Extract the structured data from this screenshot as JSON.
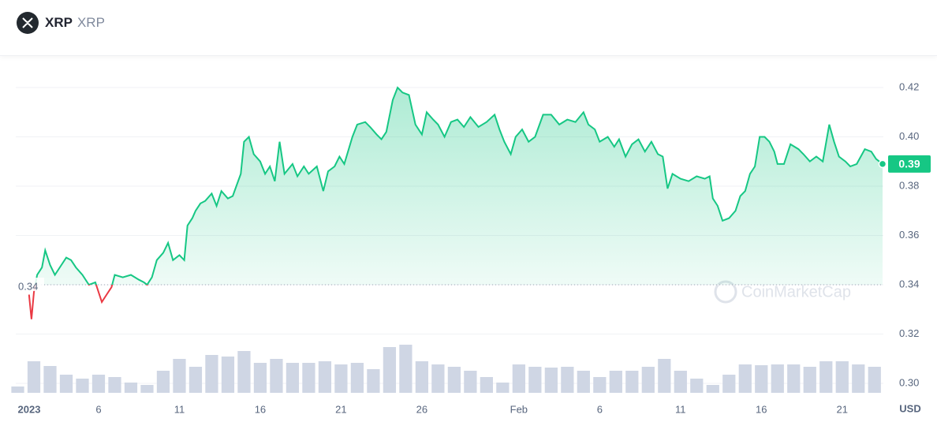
{
  "header": {
    "symbol": "XRP",
    "name": "XRP"
  },
  "chart_data": {
    "type": "line",
    "series": [
      {
        "name": "XRP",
        "color": "#16c784",
        "down_color": "#ea3943",
        "x": [
          0.7,
          0.85,
          1.0,
          1.2,
          1.5,
          1.7,
          2.0,
          2.3,
          2.7,
          3.0,
          3.3,
          3.6,
          4.0,
          4.4,
          4.8,
          5.0,
          5.2,
          5.5,
          5.8,
          6.0,
          6.5,
          7.0,
          7.5,
          7.8,
          8.0,
          8.3,
          8.6,
          9.0,
          9.3,
          9.6,
          10.0,
          10.3,
          10.5,
          10.8,
          11.0,
          11.3,
          11.6,
          12.0,
          12.3,
          12.6,
          13.0,
          13.3,
          13.8,
          14.0,
          14.3,
          14.6,
          15.0,
          15.3,
          15.6,
          15.9,
          16.2,
          16.5,
          17.0,
          17.3,
          17.7,
          18.0,
          18.5,
          18.9,
          19.2,
          19.6,
          19.9,
          20.2,
          20.7,
          21.0,
          21.5,
          21.8,
          22.2,
          22.5,
          22.8,
          23.2,
          23.5,
          23.8,
          24.2,
          24.6,
          25.0,
          25.3,
          25.7,
          26.0,
          26.4,
          26.8,
          27.2,
          27.6,
          28.0,
          28.5,
          29.0,
          29.5,
          29.8,
          30.1,
          30.5,
          30.8,
          31.2,
          31.6,
          32.0,
          32.5,
          33.0,
          33.5,
          34.0,
          34.5,
          35.0,
          35.3,
          35.7,
          36.0,
          36.5,
          36.9,
          37.2,
          37.6,
          38.0,
          38.4,
          38.8,
          39.2,
          39.6,
          39.9,
          40.2,
          40.5,
          41.0,
          41.5,
          42.0,
          42.5,
          42.8,
          43.0,
          43.3,
          43.6,
          44.0,
          44.4,
          44.7,
          45.0,
          45.3,
          45.6,
          45.9,
          46.2,
          46.5,
          46.8,
          47.0,
          47.4,
          47.8,
          48.3,
          48.6,
          49.0,
          49.4,
          49.8,
          50.2,
          50.5,
          50.8,
          51.2,
          51.5,
          51.9,
          52.4,
          52.8,
          53.1,
          53.5
        ],
        "values": [
          0.336,
          0.326,
          0.337,
          0.344,
          0.347,
          0.354,
          0.348,
          0.344,
          0.348,
          0.351,
          0.35,
          0.347,
          0.344,
          0.34,
          0.341,
          0.337,
          0.333,
          0.336,
          0.339,
          0.344,
          0.343,
          0.344,
          0.342,
          0.341,
          0.34,
          0.343,
          0.35,
          0.353,
          0.357,
          0.35,
          0.352,
          0.35,
          0.364,
          0.367,
          0.37,
          0.373,
          0.374,
          0.377,
          0.372,
          0.378,
          0.375,
          0.376,
          0.385,
          0.398,
          0.4,
          0.393,
          0.39,
          0.385,
          0.388,
          0.382,
          0.398,
          0.385,
          0.389,
          0.384,
          0.388,
          0.385,
          0.388,
          0.378,
          0.386,
          0.388,
          0.392,
          0.389,
          0.4,
          0.405,
          0.406,
          0.404,
          0.401,
          0.399,
          0.402,
          0.415,
          0.42,
          0.418,
          0.417,
          0.405,
          0.401,
          0.41,
          0.407,
          0.405,
          0.4,
          0.406,
          0.407,
          0.404,
          0.408,
          0.404,
          0.406,
          0.409,
          0.403,
          0.398,
          0.393,
          0.4,
          0.403,
          0.398,
          0.4,
          0.409,
          0.409,
          0.405,
          0.407,
          0.406,
          0.41,
          0.405,
          0.403,
          0.398,
          0.4,
          0.396,
          0.399,
          0.392,
          0.397,
          0.399,
          0.394,
          0.398,
          0.393,
          0.392,
          0.379,
          0.385,
          0.383,
          0.382,
          0.384,
          0.383,
          0.384,
          0.375,
          0.372,
          0.366,
          0.367,
          0.37,
          0.376,
          0.378,
          0.385,
          0.388,
          0.4,
          0.4,
          0.398,
          0.394,
          0.389,
          0.389,
          0.397,
          0.395,
          0.393,
          0.39,
          0.392,
          0.39,
          0.405,
          0.398,
          0.392,
          0.39,
          0.388,
          0.389,
          0.395,
          0.394,
          0.391,
          0.389
        ]
      }
    ],
    "baseline": 0.34,
    "last_label": "0.39",
    "volume": {
      "color": "#cfd6e4",
      "ylim": [
        0,
        70
      ],
      "x": [
        0,
        1,
        2,
        3,
        4,
        5,
        6,
        7,
        8,
        9,
        10,
        11,
        12,
        13,
        14,
        15,
        16,
        17,
        18,
        19,
        20,
        21,
        22,
        23,
        24,
        25,
        26,
        27,
        28,
        29,
        30,
        31,
        32,
        33,
        34,
        35,
        36,
        37,
        38,
        39,
        40,
        41,
        42,
        43,
        44,
        45,
        46,
        47,
        48,
        49,
        50,
        51,
        52,
        53
      ],
      "values": [
        8,
        40,
        34,
        23,
        18,
        23,
        20,
        13,
        10,
        28,
        43,
        33,
        48,
        46,
        53,
        38,
        43,
        38,
        38,
        40,
        36,
        38,
        30,
        58,
        61,
        40,
        36,
        33,
        28,
        20,
        13,
        36,
        33,
        32,
        33,
        28,
        20,
        28,
        28,
        33,
        43,
        28,
        18,
        10,
        23,
        36,
        35,
        36,
        36,
        33,
        40,
        40,
        36,
        33
      ]
    },
    "xlim": [
      0,
      53.5
    ],
    "xticks": [
      {
        "value": 0,
        "label": "2023"
      },
      {
        "value": 5,
        "label": "6"
      },
      {
        "value": 10,
        "label": "11"
      },
      {
        "value": 15,
        "label": "16"
      },
      {
        "value": 20,
        "label": "21"
      },
      {
        "value": 25,
        "label": "26"
      },
      {
        "value": 31,
        "label": "Feb"
      },
      {
        "value": 36,
        "label": "6"
      },
      {
        "value": 41,
        "label": "11"
      },
      {
        "value": 46,
        "label": "16"
      },
      {
        "value": 51,
        "label": "21"
      }
    ],
    "ylim": [
      0.3,
      0.42
    ],
    "yticks": [
      {
        "value": 0.3,
        "label": "0.30"
      },
      0.32,
      0.34,
      0.36,
      0.38,
      {
        "value": 0.4,
        "label": "0.40"
      },
      0.42
    ],
    "y_unit": "USD",
    "watermark": "CoinMarketCap",
    "grid": true
  }
}
